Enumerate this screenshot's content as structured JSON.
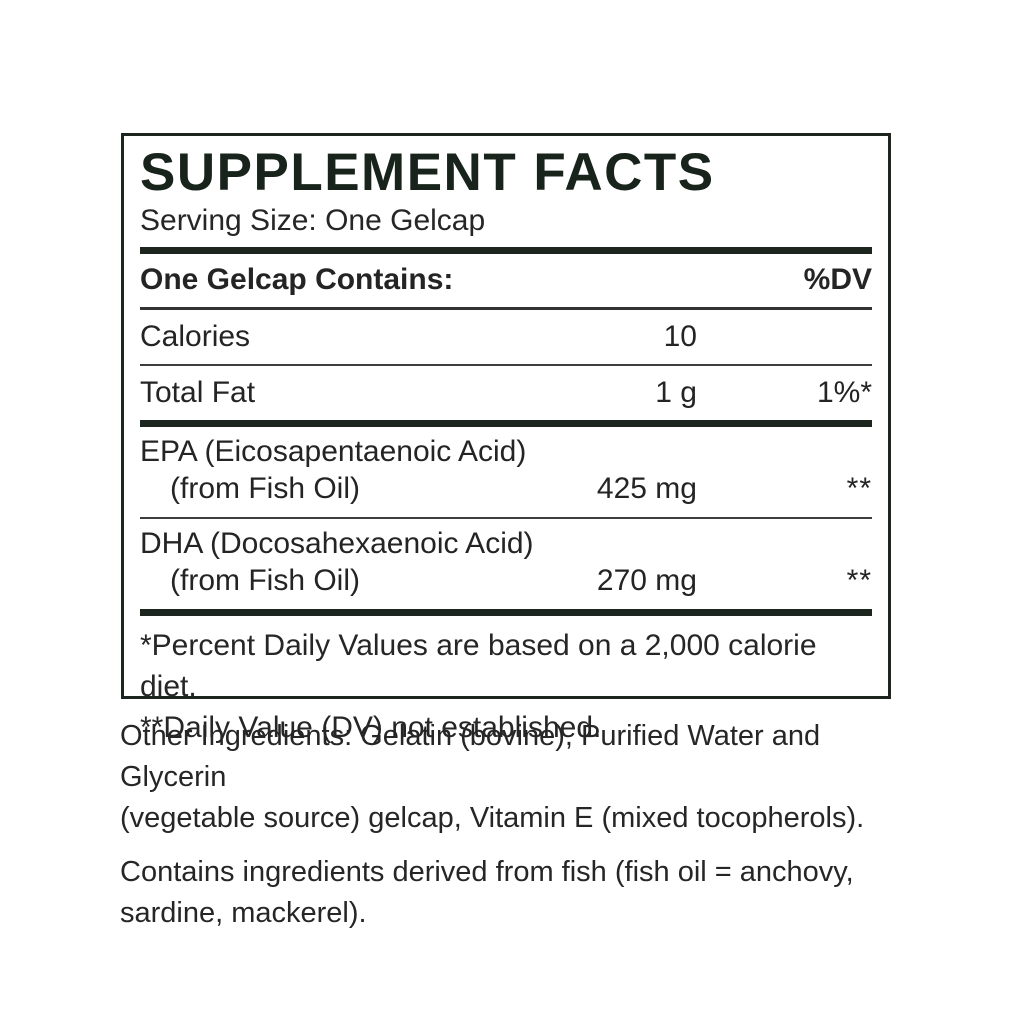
{
  "colors": {
    "ink_dark_green": "#17231b",
    "rule_dark": "#1c261f",
    "body_text": "#262626"
  },
  "panel": {
    "title": "SUPPLEMENT FACTS",
    "serving_size": "Serving Size: One Gelcap",
    "header": {
      "contains_label": "One Gelcap Contains:",
      "dv_label": "%DV"
    },
    "rows": [
      {
        "name": "Calories",
        "amount": "10",
        "dv": ""
      },
      {
        "name": "Total Fat",
        "amount": "1 g",
        "dv": "1%*"
      },
      {
        "name": "EPA (Eicosapentaenoic Acid)",
        "sub": "(from Fish Oil)",
        "amount": "425 mg",
        "dv": "**"
      },
      {
        "name": "DHA (Docosahexaenoic Acid)",
        "sub": "(from Fish Oil)",
        "amount": "270 mg",
        "dv": "**"
      }
    ],
    "footnotes": {
      "line1": "*Percent Daily Values are based on a 2,000 calorie diet.",
      "line2": "**Daily Value (DV) not established."
    }
  },
  "below": {
    "other_ingredients": {
      "line1": "Other Ingredients: Gelatin (bovine), Purified Water and  Glycerin",
      "line2": "(vegetable source) gelcap, Vitamin E (mixed tocopherols)."
    },
    "contains_statement": {
      "line1": "Contains ingredients derived from fish (fish oil = anchovy,",
      "line2": "sardine, mackerel)."
    }
  }
}
